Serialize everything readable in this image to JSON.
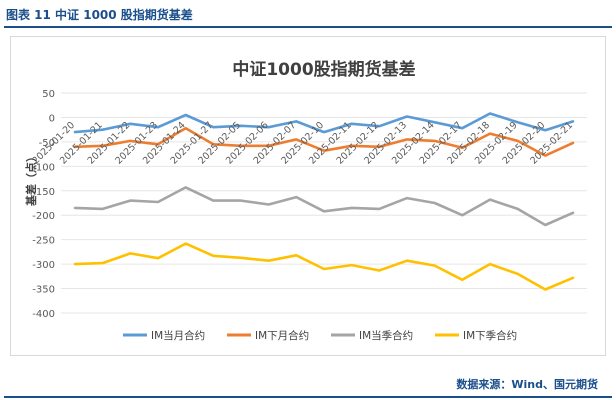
{
  "figure_label": "图表 11  中证 1000 股指期货基差",
  "source": "数据来源：Wind、国元期货",
  "chart_data": {
    "type": "line",
    "title": "中证1000股指期货基差",
    "ylabel": "基差（点）",
    "ylim": [
      -400,
      50
    ],
    "yticks": [
      50,
      0,
      -50,
      -100,
      -150,
      -200,
      -250,
      -300,
      -350,
      -400
    ],
    "grid": true,
    "legend_position": "bottom",
    "categories": [
      "2025-01-20",
      "2025-01-21",
      "2025-01-22",
      "2025-01-23",
      "2025-01-24",
      "2025-01-27",
      "2025-02-05",
      "2025-02-06",
      "2025-02-07",
      "2025-02-10",
      "2025-02-11",
      "2025-02-12",
      "2025-02-13",
      "2025-02-14",
      "2025-02-17",
      "2025-02-18",
      "2025-02-19",
      "2025-02-20",
      "2025-02-21"
    ],
    "series": [
      {
        "name": "IM当月合约",
        "color": "#5b9bd5",
        "values": [
          -30,
          -25,
          -13,
          -20,
          5,
          -20,
          -17,
          -20,
          -8,
          -30,
          -13,
          -18,
          2,
          -10,
          -22,
          8,
          -10,
          -26,
          -8
        ]
      },
      {
        "name": "IM下月合约",
        "color": "#ed7d31",
        "values": [
          -60,
          -58,
          -48,
          -55,
          -22,
          -55,
          -58,
          -58,
          -45,
          -68,
          -58,
          -60,
          -45,
          -48,
          -62,
          -33,
          -48,
          -78,
          -52
        ]
      },
      {
        "name": "IM当季合约",
        "color": "#a5a5a5",
        "values": [
          -185,
          -187,
          -170,
          -173,
          -143,
          -170,
          -170,
          -178,
          -163,
          -192,
          -185,
          -187,
          -165,
          -175,
          -200,
          -168,
          -187,
          -220,
          -195
        ]
      },
      {
        "name": "IM下季合约",
        "color": "#ffc000",
        "values": [
          -300,
          -298,
          -278,
          -288,
          -258,
          -283,
          -287,
          -293,
          -282,
          -310,
          -302,
          -313,
          -293,
          -303,
          -332,
          -300,
          -320,
          -352,
          -328
        ]
      }
    ]
  }
}
